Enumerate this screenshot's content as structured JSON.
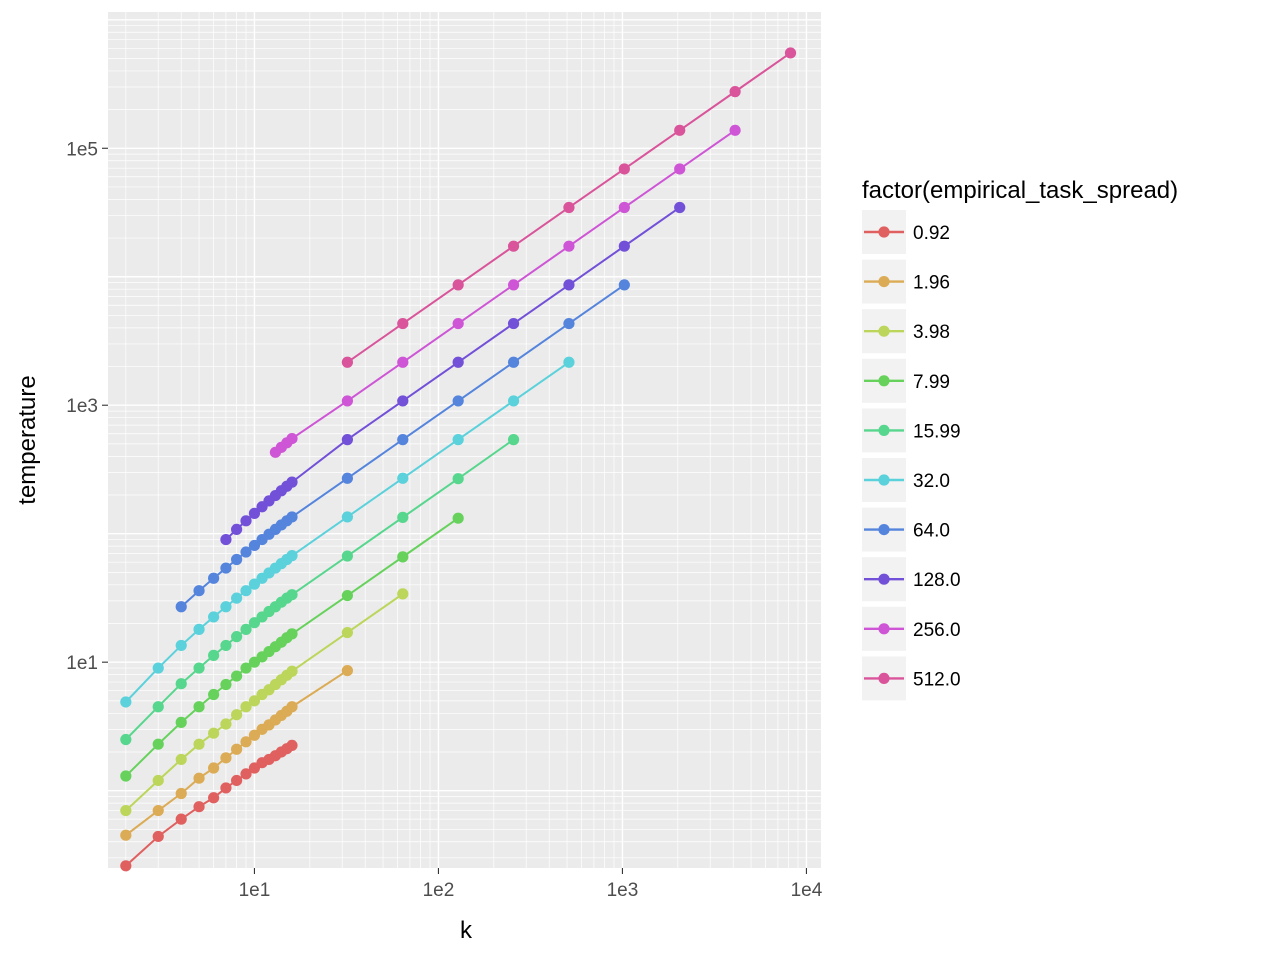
{
  "chart_data": {
    "type": "line",
    "xlabel": "k",
    "ylabel": "temperature",
    "x_scale": "log10",
    "y_scale": "log10",
    "xlim": [
      1.6,
      12000
    ],
    "ylim": [
      0.25,
      1150000
    ],
    "x_ticks": [
      {
        "value": 10,
        "label": "1e1"
      },
      {
        "value": 100,
        "label": "1e2"
      },
      {
        "value": 1000,
        "label": "1e3"
      },
      {
        "value": 10000,
        "label": "1e4"
      }
    ],
    "y_ticks": [
      {
        "value": 10,
        "label": "1e1"
      },
      {
        "value": 1000,
        "label": "1e3"
      },
      {
        "value": 100000,
        "label": "1e5"
      }
    ],
    "grid": true,
    "legend": {
      "title": "factor(empirical_task_spread)",
      "position": "right"
    },
    "series": [
      {
        "name": "0.92",
        "color": "#e06060",
        "x": [
          2,
          3,
          4,
          5,
          6,
          7,
          8,
          9,
          10,
          11,
          12,
          13,
          14,
          15,
          16
        ],
        "y": [
          0.26,
          0.44,
          0.6,
          0.75,
          0.88,
          1.05,
          1.2,
          1.35,
          1.5,
          1.65,
          1.75,
          1.87,
          2.0,
          2.12,
          2.25
        ]
      },
      {
        "name": "1.96",
        "color": "#dbab55",
        "x": [
          2,
          3,
          4,
          5,
          6,
          7,
          8,
          9,
          10,
          11,
          12,
          13,
          14,
          15,
          16,
          32
        ],
        "y": [
          0.45,
          0.7,
          0.95,
          1.25,
          1.5,
          1.8,
          2.1,
          2.4,
          2.7,
          3.0,
          3.25,
          3.55,
          3.85,
          4.15,
          4.5,
          8.6
        ]
      },
      {
        "name": "3.98",
        "color": "#bbd65a",
        "x": [
          2,
          3,
          4,
          5,
          6,
          7,
          8,
          9,
          10,
          11,
          12,
          13,
          14,
          15,
          16,
          32,
          64
        ],
        "y": [
          0.7,
          1.2,
          1.75,
          2.3,
          2.8,
          3.3,
          3.9,
          4.5,
          5.0,
          5.6,
          6.1,
          6.7,
          7.3,
          7.9,
          8.5,
          17,
          34
        ]
      },
      {
        "name": "7.99",
        "color": "#66d25c",
        "x": [
          2,
          3,
          4,
          5,
          6,
          7,
          8,
          9,
          10,
          11,
          12,
          13,
          14,
          15,
          16,
          32,
          64,
          128
        ],
        "y": [
          1.3,
          2.3,
          3.4,
          4.5,
          5.6,
          6.7,
          7.8,
          9.0,
          10.0,
          11.0,
          12.1,
          13.2,
          14.3,
          15.5,
          16.6,
          33,
          66,
          132
        ]
      },
      {
        "name": "15.99",
        "color": "#57d68e",
        "x": [
          2,
          3,
          4,
          5,
          6,
          7,
          8,
          9,
          10,
          11,
          12,
          13,
          14,
          15,
          16,
          32,
          64,
          128,
          256
        ],
        "y": [
          2.5,
          4.5,
          6.8,
          9.0,
          11.3,
          13.5,
          15.8,
          18.0,
          20.3,
          22.5,
          24.8,
          27.0,
          29.3,
          31.5,
          33.5,
          67,
          134,
          268,
          540
        ]
      },
      {
        "name": "32.0",
        "color": "#5bd1db",
        "x": [
          2,
          3,
          4,
          5,
          6,
          7,
          8,
          9,
          10,
          11,
          12,
          13,
          14,
          15,
          16,
          32,
          64,
          128,
          256,
          512
        ],
        "y": [
          4.9,
          9.0,
          13.5,
          18.0,
          22.5,
          27.0,
          31.5,
          36.0,
          40.5,
          45.0,
          49.5,
          54.0,
          58.5,
          63.0,
          67.5,
          135,
          270,
          540,
          1080,
          2160
        ]
      },
      {
        "name": "64.0",
        "color": "#5584dd",
        "x": [
          4,
          5,
          6,
          7,
          8,
          9,
          10,
          11,
          12,
          13,
          14,
          15,
          16,
          32,
          64,
          128,
          256,
          512,
          1024
        ],
        "y": [
          27,
          36,
          45,
          54,
          63,
          72,
          81,
          90,
          99,
          108,
          117,
          126,
          135,
          270,
          540,
          1080,
          2160,
          4320,
          8640
        ]
      },
      {
        "name": "128.0",
        "color": "#7250d8",
        "x": [
          7,
          8,
          9,
          10,
          11,
          12,
          13,
          14,
          15,
          16,
          32,
          64,
          128,
          256,
          512,
          1024,
          2048
        ],
        "y": [
          90,
          108,
          126,
          144,
          162,
          180,
          198,
          216,
          234,
          252,
          540,
          1080,
          2160,
          4320,
          8640,
          17300,
          34600
        ]
      },
      {
        "name": "256.0",
        "color": "#ce55d5",
        "x": [
          13,
          14,
          15,
          16,
          32,
          64,
          128,
          256,
          512,
          1024,
          2048,
          4096
        ],
        "y": [
          430,
          470,
          510,
          550,
          1080,
          2160,
          4320,
          8640,
          17300,
          34600,
          69000,
          138000
        ]
      },
      {
        "name": "512.0",
        "color": "#d9549a",
        "x": [
          32,
          64,
          128,
          256,
          512,
          1024,
          2048,
          4096,
          8192
        ],
        "y": [
          2160,
          4320,
          8640,
          17300,
          34600,
          69000,
          138000,
          276000,
          552000
        ]
      }
    ]
  }
}
